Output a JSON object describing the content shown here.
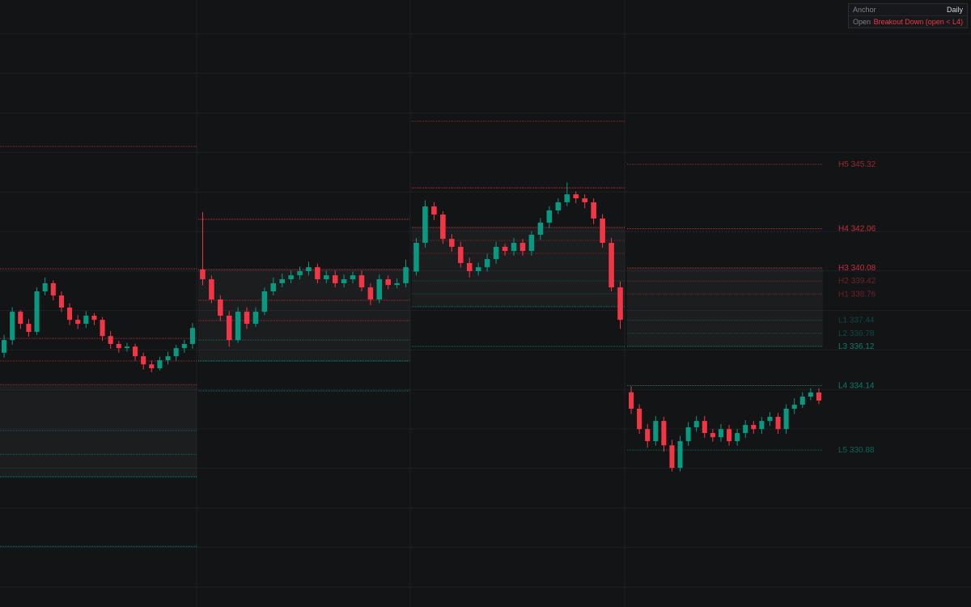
{
  "chart_data": {
    "type": "candlestick",
    "ylim": [
      322.95,
      353.62
    ],
    "up_color": "#089981",
    "down_color": "#f23645",
    "info": [
      {
        "key": "Anchor",
        "value": "Daily"
      },
      {
        "key": "Open",
        "value": "Breakout Down (open < L4)"
      }
    ],
    "sessions": [
      {
        "open": [
          335.8,
          336.44,
          337.87,
          337.26,
          336.85,
          338.9,
          339.31,
          338.69,
          338.08,
          337.46,
          337.26,
          337.67,
          337.46,
          336.64,
          336.24,
          336.03,
          336.11,
          335.62,
          335.21,
          335.01,
          335.42,
          335.62,
          336.03,
          336.24
        ],
        "high": [
          336.7,
          338.1,
          337.95,
          337.5,
          339.1,
          339.6,
          339.45,
          338.9,
          338.3,
          337.7,
          337.9,
          337.8,
          337.6,
          336.9,
          336.4,
          336.3,
          336.25,
          335.8,
          335.4,
          335.6,
          335.85,
          336.2,
          336.45,
          337.3
        ],
        "low": [
          335.55,
          336.2,
          337.0,
          336.6,
          336.7,
          338.7,
          338.45,
          337.85,
          337.2,
          337.0,
          337.05,
          337.2,
          336.4,
          336.0,
          335.8,
          335.85,
          335.4,
          334.95,
          334.8,
          334.9,
          335.2,
          335.4,
          335.8,
          336.0
        ],
        "close": [
          336.44,
          337.87,
          337.26,
          336.85,
          338.9,
          339.31,
          338.69,
          338.08,
          337.46,
          337.26,
          337.67,
          337.46,
          336.64,
          336.24,
          336.03,
          336.11,
          335.62,
          335.21,
          335.01,
          335.42,
          335.62,
          336.03,
          336.24,
          337.05
        ],
        "levels": [
          346.22,
          340.04,
          336.52,
          335.38,
          334.19,
          331.86,
          330.67,
          329.53,
          326.01
        ],
        "level_colors": [
          "#f2364599",
          "#f23645cc",
          "#f23645aa",
          "#f2364599",
          "#f2364599",
          "#08998199",
          "#08998199",
          "#089981",
          "#089981cc"
        ],
        "band": [
          4,
          7
        ]
      },
      {
        "open": [
          340.0,
          339.51,
          338.49,
          337.67,
          336.44,
          337.87,
          337.26,
          337.87,
          338.9,
          339.31,
          339.51,
          339.71,
          339.92,
          340.12,
          339.51,
          339.71,
          339.31,
          339.51,
          339.71,
          339.1,
          338.49,
          339.51,
          339.22,
          339.31
        ],
        "high": [
          342.9,
          339.7,
          338.7,
          337.9,
          338.1,
          338.1,
          338.1,
          339.1,
          339.6,
          339.8,
          339.95,
          340.15,
          340.4,
          340.3,
          339.95,
          339.95,
          339.75,
          339.9,
          339.95,
          339.3,
          339.75,
          339.7,
          339.55,
          340.5
        ],
        "low": [
          339.2,
          338.3,
          337.4,
          336.1,
          336.3,
          337.0,
          337.1,
          337.7,
          338.7,
          339.1,
          339.3,
          339.5,
          339.7,
          339.3,
          339.3,
          339.1,
          339.1,
          339.3,
          338.9,
          338.2,
          338.3,
          339.0,
          339.05,
          339.1
        ],
        "close": [
          339.51,
          338.49,
          337.67,
          336.44,
          337.87,
          337.26,
          337.87,
          338.9,
          339.31,
          339.51,
          339.71,
          339.92,
          340.12,
          339.51,
          339.71,
          339.31,
          339.51,
          339.71,
          339.1,
          338.49,
          339.51,
          339.22,
          339.31,
          340.12
        ],
        "levels": [
          342.54,
          340.0,
          338.45,
          337.42,
          336.44,
          335.38,
          333.87
        ],
        "level_colors": [
          "#f23645cc",
          "#f23645cc",
          "#f23645aa",
          "#f2364599",
          "#08998199",
          "#089981",
          "#089981cc"
        ],
        "band": [
          1,
          5
        ]
      },
      {
        "open": [
          339.9,
          341.35,
          343.19,
          342.78,
          341.55,
          341.15,
          340.33,
          339.92,
          340.12,
          340.53,
          341.15,
          340.94,
          341.35,
          340.94,
          341.76,
          342.37,
          342.99,
          343.4,
          343.8,
          343.6,
          343.4,
          342.58,
          341.35,
          339.1
        ],
        "high": [
          341.6,
          343.5,
          343.4,
          342.95,
          341.8,
          341.4,
          340.6,
          340.35,
          340.8,
          341.4,
          341.3,
          341.6,
          341.55,
          341.95,
          342.6,
          343.2,
          343.6,
          344.4,
          343.95,
          343.8,
          343.6,
          342.8,
          341.6,
          339.4
        ],
        "low": [
          339.7,
          341.1,
          342.5,
          341.3,
          340.9,
          340.1,
          339.6,
          339.7,
          339.9,
          340.3,
          340.7,
          340.7,
          340.7,
          340.7,
          341.5,
          342.1,
          342.8,
          343.2,
          343.35,
          343.1,
          342.3,
          341.1,
          338.9,
          337.0
        ],
        "close": [
          341.35,
          343.19,
          342.78,
          341.55,
          341.15,
          340.33,
          339.92,
          340.12,
          340.53,
          341.15,
          340.94,
          341.35,
          340.94,
          341.76,
          342.37,
          342.99,
          343.4,
          343.8,
          343.6,
          343.4,
          342.58,
          341.35,
          339.1,
          337.46
        ],
        "levels": [
          347.49,
          344.13,
          342.13,
          341.47,
          340.82,
          339.43,
          338.77,
          338.12,
          336.12
        ],
        "level_colors": [
          "#f2364599",
          "#f23645cc",
          "#f23645cc",
          "#f2364566",
          "#f2364566",
          "#08998166",
          "#08998166",
          "#089981cc",
          "#089981cc"
        ],
        "band": [
          2,
          7
        ]
      },
      {
        "open": [
          333.8,
          332.97,
          331.94,
          331.33,
          332.35,
          331.12,
          329.98,
          331.33,
          332.03,
          332.35,
          331.74,
          331.53,
          331.94,
          331.33,
          331.74,
          332.15,
          331.94,
          332.35,
          332.56,
          331.94,
          332.97,
          333.17,
          333.58,
          333.79
        ],
        "high": [
          334.1,
          333.2,
          332.2,
          332.6,
          332.55,
          331.4,
          331.6,
          332.3,
          332.6,
          332.6,
          331.95,
          332.2,
          332.15,
          331.95,
          332.4,
          332.35,
          332.55,
          332.8,
          332.75,
          333.2,
          333.5,
          333.8,
          334.0,
          334.0
        ],
        "low": [
          332.7,
          331.7,
          331.0,
          331.1,
          330.8,
          329.8,
          329.8,
          331.1,
          331.8,
          331.5,
          331.3,
          331.3,
          331.1,
          331.1,
          331.5,
          331.7,
          331.7,
          332.1,
          331.7,
          331.7,
          332.7,
          333.0,
          333.4,
          333.2
        ],
        "close": [
          332.97,
          331.94,
          331.33,
          332.35,
          331.12,
          329.98,
          331.33,
          332.03,
          332.35,
          331.74,
          331.53,
          331.94,
          331.33,
          331.74,
          332.15,
          331.94,
          332.35,
          332.56,
          331.94,
          332.97,
          333.17,
          333.58,
          333.79,
          333.38
        ],
        "levels": [
          345.32,
          342.06,
          340.08,
          339.42,
          338.76,
          337.44,
          336.78,
          336.12,
          334.14,
          330.88
        ],
        "level_names": [
          "H5",
          "H4",
          "H3",
          "H2",
          "H1",
          "L1",
          "L2",
          "L3",
          "L4",
          "L5"
        ],
        "level_colors": [
          "#f2364599",
          "#f23645cc",
          "#f23645cc",
          "#f2364566",
          "#f2364566",
          "#08998166",
          "#08998166",
          "#089981cc",
          "#089981cc",
          "#08998199"
        ],
        "band": [
          2,
          7
        ]
      }
    ]
  }
}
